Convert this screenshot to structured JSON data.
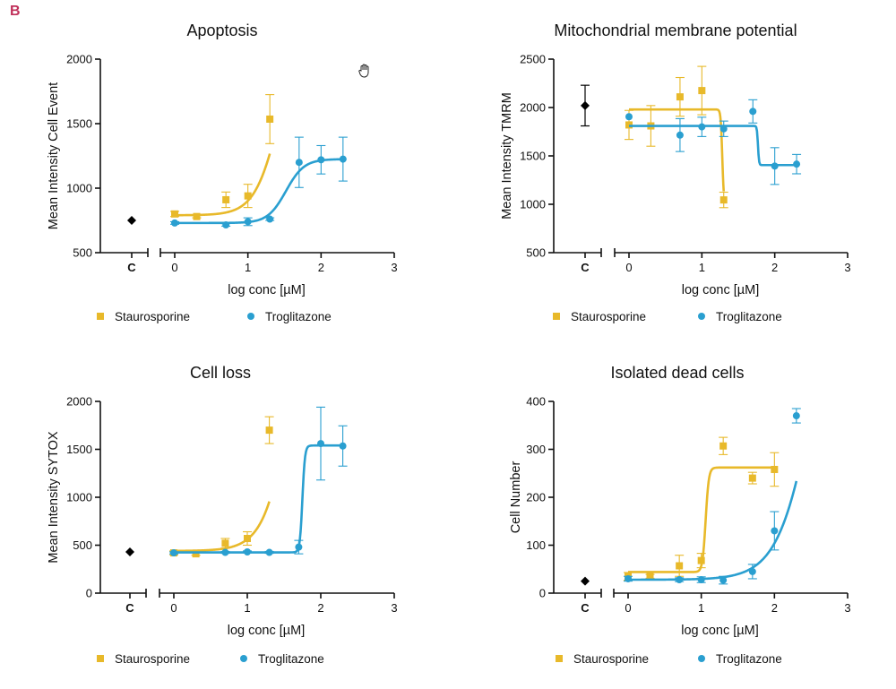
{
  "figure_label": "B",
  "colors": {
    "staurosporine": "#e8b92a",
    "troglitazone": "#2a9fd0",
    "control": "#000000"
  },
  "chart_data": [
    {
      "id": "apoptosis",
      "type": "scatter",
      "title": "Apoptosis",
      "xlabel": "log conc [µM]",
      "ylabel": "Mean Intensity Cell Event",
      "ylim": [
        500,
        2000
      ],
      "yticks": [
        "500",
        "1000",
        "1500",
        "2000"
      ],
      "xlim": [
        -0.1,
        3
      ],
      "xticks": [
        "0",
        "1",
        "2",
        "3"
      ],
      "control_label": "C",
      "control": {
        "value": 750,
        "err": 0
      },
      "legend": [
        "Staurosporine",
        "Troglitazone"
      ],
      "series": [
        {
          "name": "Staurosporine",
          "color_key": "staurosporine",
          "x": [
            0,
            0.3,
            0.7,
            1.0,
            1.3
          ],
          "values": [
            800,
            780,
            910,
            940,
            1535
          ],
          "err": [
            20,
            10,
            60,
            90,
            190
          ],
          "fit": {
            "bottom": 790,
            "top": 2400,
            "logec50": 1.45,
            "hill": 2.5,
            "xmin": 0,
            "xmax": 1.3
          }
        },
        {
          "name": "Troglitazone",
          "color_key": "troglitazone",
          "x": [
            0,
            0.7,
            1.0,
            1.3,
            1.7,
            2.0,
            2.3
          ],
          "values": [
            730,
            715,
            740,
            760,
            1200,
            1220,
            1225
          ],
          "err": [
            10,
            10,
            30,
            10,
            195,
            110,
            170
          ],
          "fit": {
            "bottom": 730,
            "top": 1225,
            "logec50": 1.52,
            "hill": 3.5,
            "xmin": 0,
            "xmax": 2.3
          }
        }
      ]
    },
    {
      "id": "mmp",
      "type": "scatter",
      "title": "Mitochondrial membrane potential",
      "xlabel": "log conc [µM]",
      "ylabel": "Mean Intensity TMRM",
      "ylim": [
        500,
        2500
      ],
      "yticks": [
        "500",
        "1000",
        "1500",
        "2000",
        "2500"
      ],
      "xlim": [
        -0.1,
        3
      ],
      "xticks": [
        "0",
        "1",
        "2",
        "3"
      ],
      "control_label": "C",
      "control": {
        "value": 2020,
        "err": 210
      },
      "legend": [
        "Staurosporine",
        "Troglitazone"
      ],
      "series": [
        {
          "name": "Staurosporine",
          "color_key": "staurosporine",
          "x": [
            0,
            0.3,
            0.7,
            1.0,
            1.3
          ],
          "values": [
            1820,
            1810,
            2110,
            2175,
            1045
          ],
          "err": [
            150,
            210,
            200,
            250,
            80
          ],
          "fit": {
            "bottom": 1980,
            "top": 1000,
            "logec50": 1.28,
            "hill": 40,
            "xmin": 0,
            "xmax": 1.3
          }
        },
        {
          "name": "Troglitazone",
          "color_key": "troglitazone",
          "x": [
            0,
            0.7,
            1.0,
            1.3,
            1.7,
            2.0,
            2.3
          ],
          "values": [
            1905,
            1715,
            1800,
            1780,
            1960,
            1395,
            1415
          ],
          "err": [
            0,
            170,
            100,
            80,
            120,
            190,
            100
          ],
          "fit": {
            "bottom": 1810,
            "top": 1405,
            "logec50": 1.77,
            "hill": 60,
            "xmin": 0,
            "xmax": 2.3
          }
        }
      ]
    },
    {
      "id": "cellloss",
      "type": "scatter",
      "title": "Cell loss",
      "xlabel": "log conc [µM]",
      "ylabel": "Mean Intensity SYTOX",
      "ylim": [
        0,
        2000
      ],
      "yticks": [
        "0",
        "500",
        "1000",
        "1500",
        "2000"
      ],
      "xlim": [
        -0.1,
        3
      ],
      "xticks": [
        "0",
        "1",
        "2",
        "3"
      ],
      "control_label": "C",
      "control": {
        "value": 430,
        "err": 0
      },
      "legend": [
        "Staurosporine",
        "Troglitazone"
      ],
      "series": [
        {
          "name": "Staurosporine",
          "color_key": "staurosporine",
          "x": [
            0,
            0.3,
            0.7,
            1.0,
            1.3
          ],
          "values": [
            420,
            410,
            520,
            570,
            1700
          ],
          "err": [
            20,
            15,
            50,
            70,
            140
          ],
          "fit": {
            "bottom": 440,
            "top": 6000,
            "logec50": 1.75,
            "hill": 2.2,
            "xmin": 0,
            "xmax": 1.3
          }
        },
        {
          "name": "Troglitazone",
          "color_key": "troglitazone",
          "x": [
            0,
            0.7,
            1.0,
            1.3,
            1.7,
            2.0,
            2.3
          ],
          "values": [
            420,
            425,
            430,
            425,
            480,
            1560,
            1535
          ],
          "err": [
            10,
            10,
            10,
            10,
            70,
            380,
            210
          ],
          "fit": {
            "bottom": 425,
            "top": 1540,
            "logec50": 1.75,
            "hill": 25,
            "xmin": 0,
            "xmax": 2.3
          }
        }
      ]
    },
    {
      "id": "deadcells",
      "type": "scatter",
      "title": "Isolated dead cells",
      "xlabel": "log conc [µM]",
      "ylabel": "Cell Number",
      "ylim": [
        0,
        400
      ],
      "yticks": [
        "0",
        "100",
        "200",
        "300",
        "400"
      ],
      "xlim": [
        -0.1,
        3
      ],
      "xticks": [
        "0",
        "1",
        "2",
        "3"
      ],
      "control_label": "C",
      "control": {
        "value": 25,
        "err": 0
      },
      "legend": [
        "Staurosporine",
        "Troglitazone"
      ],
      "series": [
        {
          "name": "Staurosporine",
          "color_key": "staurosporine",
          "x": [
            0,
            0.3,
            0.7,
            1.0,
            1.3,
            1.7,
            2.0
          ],
          "values": [
            35,
            35,
            57,
            68,
            307,
            240,
            258
          ],
          "err": [
            8,
            4,
            22,
            15,
            18,
            12,
            35
          ],
          "fit": {
            "bottom": 44,
            "top": 262,
            "logec50": 1.06,
            "hill": 20,
            "xmin": 0,
            "xmax": 2.0
          }
        },
        {
          "name": "Troglitazone",
          "color_key": "troglitazone",
          "x": [
            0,
            0.7,
            1.0,
            1.3,
            1.7,
            2.0,
            2.3
          ],
          "values": [
            30,
            28,
            28,
            27,
            45,
            130,
            370
          ],
          "err": [
            5,
            4,
            6,
            8,
            15,
            40,
            15
          ],
          "fit": {
            "bottom": 28,
            "top": 900,
            "logec50": 2.6,
            "hill": 1.7,
            "xmin": 0,
            "xmax": 2.3
          }
        }
      ]
    }
  ]
}
